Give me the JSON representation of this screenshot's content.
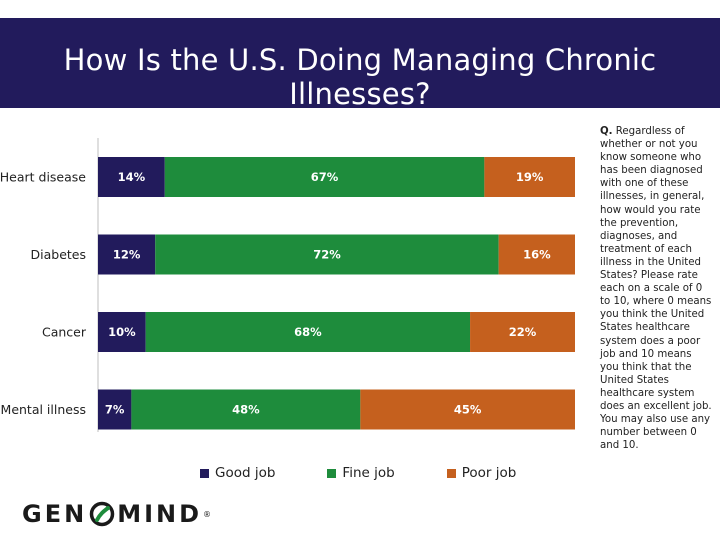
{
  "title": "How Is the U.S. Doing Managing Chronic Illnesses?",
  "question": {
    "prefix": "Q.",
    "text": "Regardless of whether or not you know someone who has been diagnosed with one of these illnesses, in general, how would you rate the prevention, diagnoses, and treatment of each illness in the United States? Please rate each on a scale of 0 to 10, where 0 means you think the United States healthcare system does a poor job and 10 means you think that the United States healthcare system does an excellent job. You may also use any number between 0 and 10."
  },
  "logo": {
    "left": "GEN",
    "right": "MIND",
    "mark": "®"
  },
  "chart_data": {
    "type": "bar",
    "orientation": "horizontal",
    "stacked": true,
    "categories": [
      "Heart disease",
      "Diabetes",
      "Cancer",
      "Mental illness"
    ],
    "series": [
      {
        "name": "Good job",
        "color": "#221b5c",
        "values": [
          14,
          12,
          10,
          7
        ],
        "labels": [
          "14%",
          "12%",
          "10%",
          "7%"
        ]
      },
      {
        "name": "Fine job",
        "color": "#1e8c3c",
        "values": [
          67,
          72,
          68,
          48
        ],
        "labels": [
          "67%",
          "72%",
          "68%",
          "48%"
        ]
      },
      {
        "name": "Poor job",
        "color": "#c5601e",
        "values": [
          19,
          16,
          22,
          45
        ],
        "labels": [
          "19%",
          "16%",
          "22%",
          "45%"
        ]
      }
    ],
    "xlim": [
      0,
      100
    ],
    "legend": "bottom",
    "grid": false
  }
}
